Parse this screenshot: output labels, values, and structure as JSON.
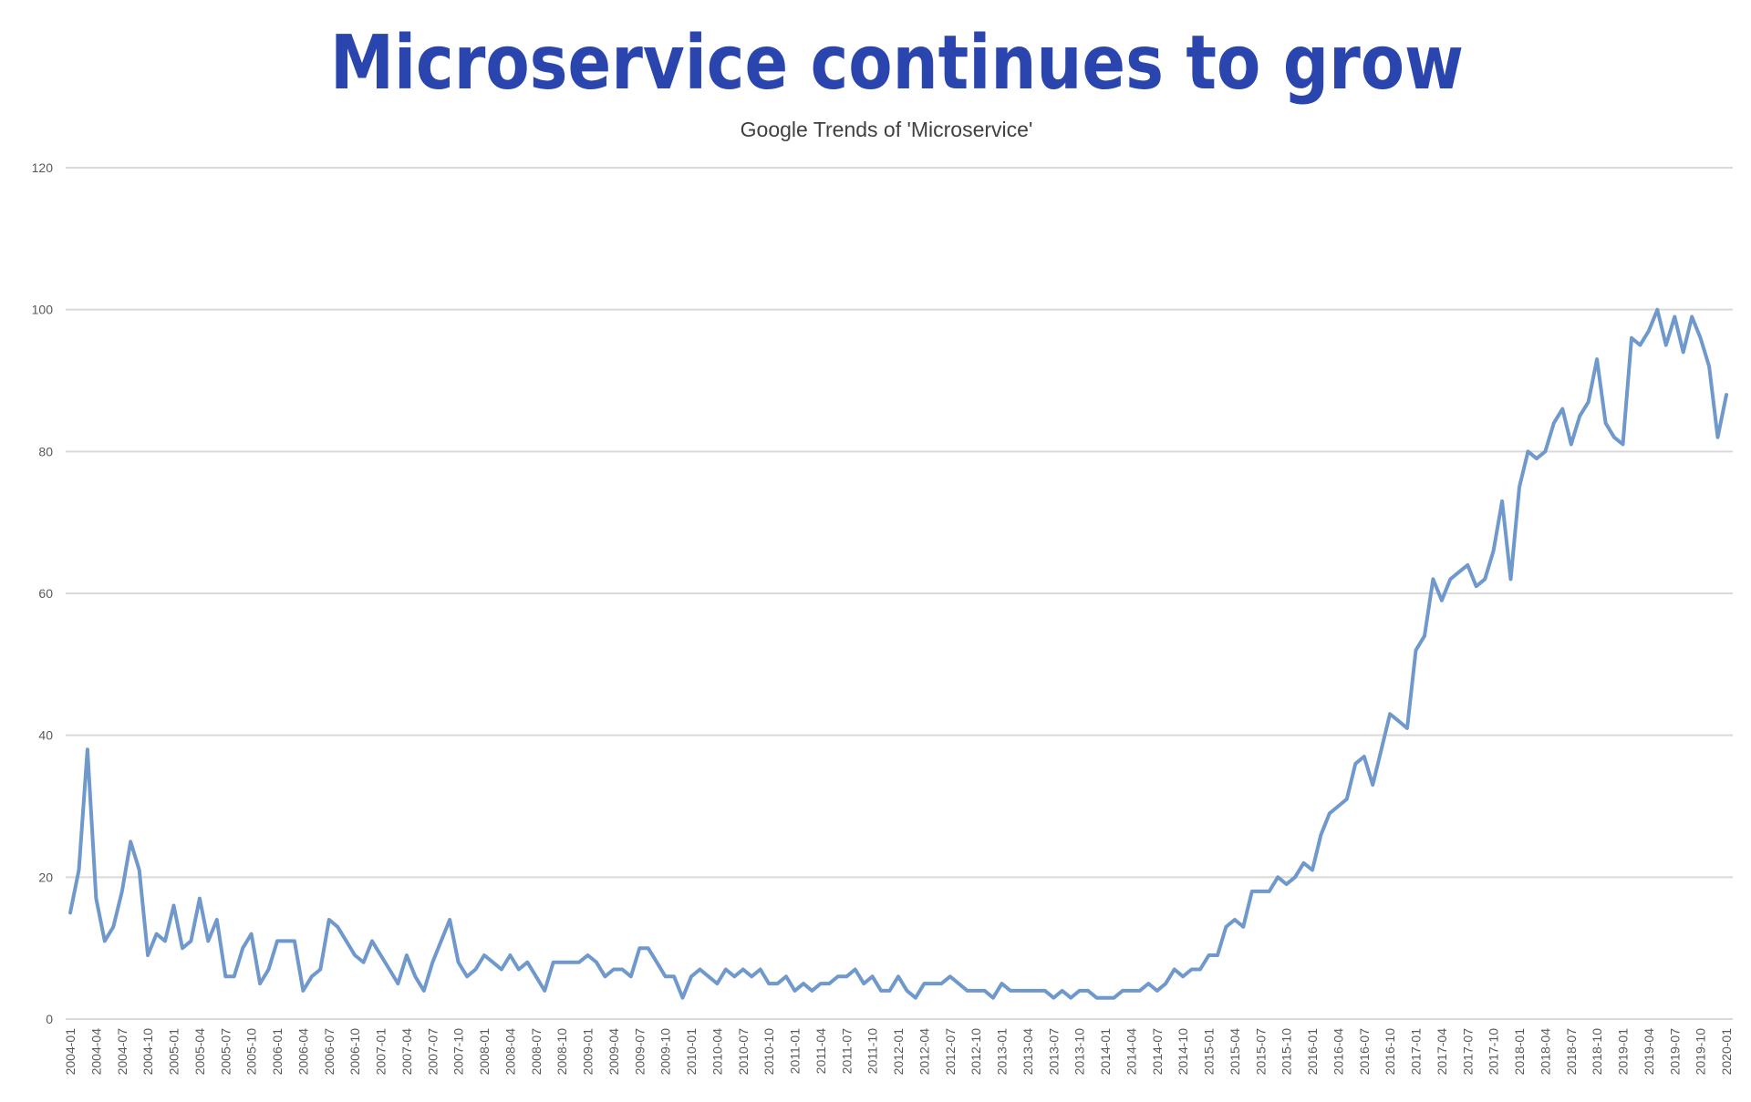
{
  "chart_data": {
    "type": "line",
    "title": "Microservice continues to grow",
    "subtitle": "Google Trends of 'Microservice'",
    "xlabel": "",
    "ylabel": "",
    "ylim": [
      0,
      120
    ],
    "y_ticks": [
      0,
      20,
      40,
      60,
      80,
      100,
      120
    ],
    "grid": true,
    "legend": "none",
    "line_color": "#6f98cc",
    "title_color": "#2a45ad",
    "x": [
      "2004-01",
      "2004-02",
      "2004-03",
      "2004-04",
      "2004-05",
      "2004-06",
      "2004-07",
      "2004-08",
      "2004-09",
      "2004-10",
      "2004-11",
      "2004-12",
      "2005-01",
      "2005-02",
      "2005-03",
      "2005-04",
      "2005-05",
      "2005-06",
      "2005-07",
      "2005-08",
      "2005-09",
      "2005-10",
      "2005-11",
      "2005-12",
      "2006-01",
      "2006-02",
      "2006-03",
      "2006-04",
      "2006-05",
      "2006-06",
      "2006-07",
      "2006-08",
      "2006-09",
      "2006-10",
      "2006-11",
      "2006-12",
      "2007-01",
      "2007-02",
      "2007-03",
      "2007-04",
      "2007-05",
      "2007-06",
      "2007-07",
      "2007-08",
      "2007-09",
      "2007-10",
      "2007-11",
      "2007-12",
      "2008-01",
      "2008-02",
      "2008-03",
      "2008-04",
      "2008-05",
      "2008-06",
      "2008-07",
      "2008-08",
      "2008-09",
      "2008-10",
      "2008-11",
      "2008-12",
      "2009-01",
      "2009-02",
      "2009-03",
      "2009-04",
      "2009-05",
      "2009-06",
      "2009-07",
      "2009-08",
      "2009-09",
      "2009-10",
      "2009-11",
      "2009-12",
      "2010-01",
      "2010-02",
      "2010-03",
      "2010-04",
      "2010-05",
      "2010-06",
      "2010-07",
      "2010-08",
      "2010-09",
      "2010-10",
      "2010-11",
      "2010-12",
      "2011-01",
      "2011-02",
      "2011-03",
      "2011-04",
      "2011-05",
      "2011-06",
      "2011-07",
      "2011-08",
      "2011-09",
      "2011-10",
      "2011-11",
      "2011-12",
      "2012-01",
      "2012-02",
      "2012-03",
      "2012-04",
      "2012-05",
      "2012-06",
      "2012-07",
      "2012-08",
      "2012-09",
      "2012-10",
      "2012-11",
      "2012-12",
      "2013-01",
      "2013-02",
      "2013-03",
      "2013-04",
      "2013-05",
      "2013-06",
      "2013-07",
      "2013-08",
      "2013-09",
      "2013-10",
      "2013-11",
      "2013-12",
      "2014-01",
      "2014-02",
      "2014-03",
      "2014-04",
      "2014-05",
      "2014-06",
      "2014-07",
      "2014-08",
      "2014-09",
      "2014-10",
      "2014-11",
      "2014-12",
      "2015-01",
      "2015-02",
      "2015-03",
      "2015-04",
      "2015-05",
      "2015-06",
      "2015-07",
      "2015-08",
      "2015-09",
      "2015-10",
      "2015-11",
      "2015-12",
      "2016-01",
      "2016-02",
      "2016-03",
      "2016-04",
      "2016-05",
      "2016-06",
      "2016-07",
      "2016-08",
      "2016-09",
      "2016-10",
      "2016-11",
      "2016-12",
      "2017-01",
      "2017-02",
      "2017-03",
      "2017-04",
      "2017-05",
      "2017-06",
      "2017-07",
      "2017-08",
      "2017-09",
      "2017-10",
      "2017-11",
      "2017-12",
      "2018-01",
      "2018-02",
      "2018-03",
      "2018-04",
      "2018-05",
      "2018-06",
      "2018-07",
      "2018-08",
      "2018-09",
      "2018-10",
      "2018-11",
      "2018-12",
      "2019-01",
      "2019-02",
      "2019-03",
      "2019-04",
      "2019-05",
      "2019-06",
      "2019-07",
      "2019-08",
      "2019-09",
      "2019-10",
      "2019-11",
      "2019-12",
      "2020-01"
    ],
    "values": [
      15,
      21,
      38,
      17,
      11,
      13,
      18,
      25,
      21,
      9,
      12,
      11,
      16,
      10,
      11,
      17,
      11,
      14,
      6,
      6,
      10,
      12,
      5,
      7,
      11,
      11,
      11,
      4,
      6,
      7,
      14,
      13,
      11,
      9,
      8,
      11,
      9,
      7,
      5,
      9,
      6,
      4,
      8,
      11,
      14,
      8,
      6,
      7,
      9,
      8,
      7,
      9,
      7,
      8,
      6,
      4,
      8,
      8,
      8,
      8,
      9,
      8,
      6,
      7,
      7,
      6,
      10,
      10,
      8,
      6,
      6,
      3,
      6,
      7,
      6,
      5,
      7,
      6,
      7,
      6,
      7,
      5,
      5,
      6,
      4,
      5,
      4,
      5,
      5,
      6,
      6,
      7,
      5,
      6,
      4,
      4,
      6,
      4,
      3,
      5,
      5,
      5,
      6,
      5,
      4,
      4,
      4,
      3,
      5,
      4,
      4,
      4,
      4,
      4,
      3,
      4,
      3,
      4,
      4,
      3,
      3,
      3,
      4,
      4,
      4,
      5,
      4,
      5,
      7,
      6,
      7,
      7,
      9,
      9,
      13,
      14,
      13,
      18,
      18,
      18,
      20,
      19,
      20,
      22,
      21,
      26,
      29,
      30,
      31,
      36,
      37,
      33,
      38,
      43,
      42,
      41,
      52,
      54,
      62,
      59,
      62,
      63,
      64,
      61,
      62,
      66,
      73,
      62,
      75,
      80,
      79,
      80,
      84,
      86,
      81,
      85,
      87,
      93,
      84,
      82,
      81,
      96,
      95,
      97,
      100,
      95,
      99,
      94,
      99,
      96,
      92,
      82,
      88
    ],
    "x_tick_every": 3
  }
}
